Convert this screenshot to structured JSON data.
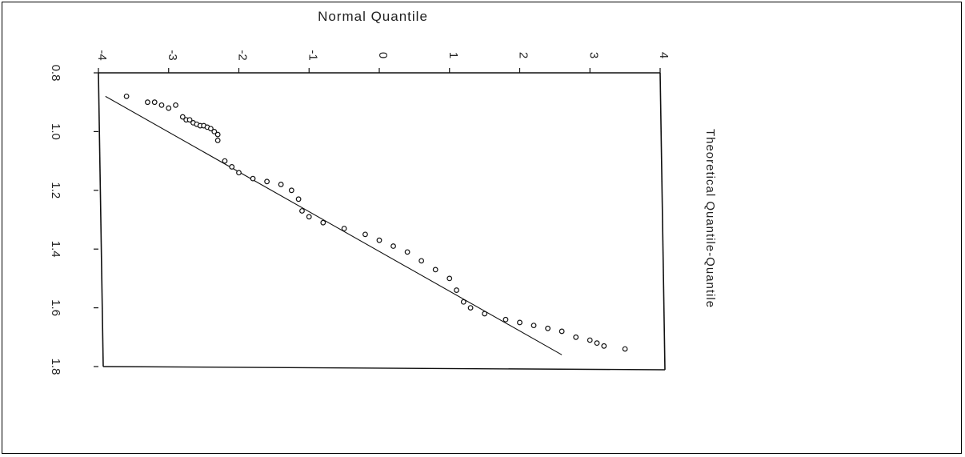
{
  "chart_data": {
    "type": "scatter",
    "title": "",
    "top_axis_label": "Normal Quantile",
    "right_axis_label": "Theoretical Quantile-Quantile",
    "x_axis": {
      "range": [
        -4,
        4
      ],
      "ticks": [
        "-4",
        "-3",
        "-2",
        "-1",
        "0",
        "1",
        "2",
        "3",
        "4"
      ]
    },
    "y_axis": {
      "range": [
        0.8,
        1.8
      ],
      "ticks": [
        "0.8",
        "1.0",
        "1.2",
        "1.4",
        "1.6",
        "1.8"
      ]
    },
    "reference_line": {
      "from": [
        -3.9,
        0.88
      ],
      "to": [
        2.6,
        1.76
      ]
    },
    "series": [
      {
        "points": [
          [
            -3.6,
            0.88
          ],
          [
            -3.3,
            0.9
          ],
          [
            -3.2,
            0.9
          ],
          [
            -3.1,
            0.91
          ],
          [
            -3.0,
            0.92
          ],
          [
            -2.9,
            0.91
          ],
          [
            -2.8,
            0.95
          ],
          [
            -2.75,
            0.96
          ],
          [
            -2.7,
            0.96
          ],
          [
            -2.65,
            0.97
          ],
          [
            -2.6,
            0.975
          ],
          [
            -2.55,
            0.98
          ],
          [
            -2.5,
            0.98
          ],
          [
            -2.45,
            0.985
          ],
          [
            -2.4,
            0.99
          ],
          [
            -2.35,
            1.0
          ],
          [
            -2.3,
            1.01
          ],
          [
            -2.3,
            1.03
          ],
          [
            -2.2,
            1.1
          ],
          [
            -2.1,
            1.12
          ],
          [
            -2.0,
            1.14
          ],
          [
            -1.8,
            1.16
          ],
          [
            -1.6,
            1.17
          ],
          [
            -1.4,
            1.18
          ],
          [
            -1.25,
            1.2
          ],
          [
            -1.15,
            1.23
          ],
          [
            -1.1,
            1.27
          ],
          [
            -1.0,
            1.29
          ],
          [
            -0.8,
            1.31
          ],
          [
            -0.5,
            1.33
          ],
          [
            -0.2,
            1.35
          ],
          [
            0.0,
            1.37
          ],
          [
            0.2,
            1.39
          ],
          [
            0.4,
            1.41
          ],
          [
            0.6,
            1.44
          ],
          [
            0.8,
            1.47
          ],
          [
            1.0,
            1.5
          ],
          [
            1.1,
            1.54
          ],
          [
            1.2,
            1.58
          ],
          [
            1.3,
            1.6
          ],
          [
            1.5,
            1.62
          ],
          [
            1.8,
            1.64
          ],
          [
            2.0,
            1.65
          ],
          [
            2.2,
            1.66
          ],
          [
            2.4,
            1.67
          ],
          [
            2.6,
            1.68
          ],
          [
            2.8,
            1.7
          ],
          [
            3.0,
            1.71
          ],
          [
            3.1,
            1.72
          ],
          [
            3.2,
            1.73
          ],
          [
            3.5,
            1.74
          ]
        ]
      }
    ],
    "grid": false
  }
}
